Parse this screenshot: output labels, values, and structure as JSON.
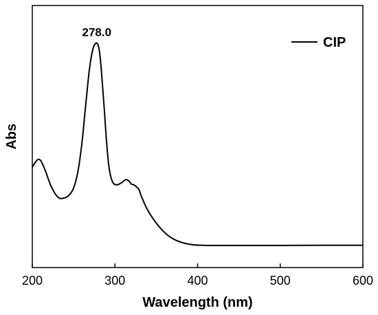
{
  "chart_data": {
    "type": "line",
    "xlabel": "Wavelength (nm)",
    "ylabel": "Abs",
    "xlim": [
      200,
      600
    ],
    "ylim": [
      0,
      1.0
    ],
    "xticks": [
      200,
      300,
      400,
      500,
      600
    ],
    "xtick_labels": [
      "200",
      "300",
      "400",
      "500",
      "600"
    ],
    "y_tick_labels_shown": false,
    "grid": false,
    "legend": {
      "position": "top-right",
      "entries": [
        "CIP"
      ]
    },
    "annotations": [
      {
        "text": "278.0",
        "x": 278,
        "y": 0.985
      }
    ],
    "series": [
      {
        "name": "CIP",
        "color": "#000000",
        "x": [
          200,
          203,
          206,
          208,
          210,
          213,
          217,
          222,
          228,
          233,
          237,
          241,
          245,
          250,
          255,
          260,
          264,
          268,
          271,
          274,
          276,
          278,
          280,
          282,
          284,
          287,
          290,
          293,
          297,
          302,
          308,
          313,
          317,
          320,
          323,
          326,
          329,
          331,
          334,
          338,
          343,
          350,
          358,
          366,
          375,
          385,
          395,
          405,
          420,
          450,
          500,
          550,
          600
        ],
        "y": [
          0.385,
          0.405,
          0.42,
          0.423,
          0.418,
          0.395,
          0.355,
          0.3,
          0.255,
          0.235,
          0.235,
          0.24,
          0.252,
          0.285,
          0.36,
          0.5,
          0.66,
          0.82,
          0.91,
          0.965,
          0.98,
          0.985,
          0.97,
          0.92,
          0.83,
          0.67,
          0.5,
          0.38,
          0.315,
          0.3,
          0.31,
          0.325,
          0.318,
          0.303,
          0.3,
          0.29,
          0.278,
          0.255,
          0.225,
          0.19,
          0.155,
          0.115,
          0.078,
          0.05,
          0.03,
          0.017,
          0.01,
          0.008,
          0.007,
          0.007,
          0.007,
          0.008,
          0.008
        ]
      }
    ]
  }
}
